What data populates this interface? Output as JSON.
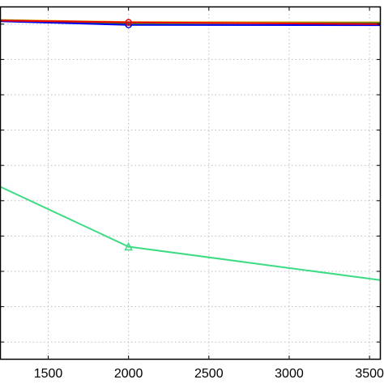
{
  "chart_data": {
    "type": "line",
    "title": "",
    "xlabel": "",
    "ylabel": "",
    "xlim": [
      1200,
      3570
    ],
    "ylim": [
      0,
      1
    ],
    "grid": true,
    "x_ticks": [
      1500,
      2000,
      2500,
      3000,
      3500
    ],
    "x_tick_labels": [
      "1500",
      "2000",
      "2500",
      "3000",
      "3500"
    ],
    "y_ticks": [
      0.05,
      0.15,
      0.25,
      0.35,
      0.45,
      0.55,
      0.65,
      0.75,
      0.85,
      0.95
    ],
    "series": [
      {
        "color": "#d9a400",
        "marker": "none",
        "x": [
          1200,
          2000,
          3570
        ],
        "y": [
          0.962,
          0.956,
          0.955
        ]
      },
      {
        "color": "#2a7a2a",
        "marker": "none",
        "x": [
          1200,
          2000,
          3570
        ],
        "y": [
          0.961,
          0.952,
          0.953
        ]
      },
      {
        "color": "#0000ee",
        "marker": "circle",
        "x": [
          1200,
          2000,
          3570
        ],
        "y": [
          0.958,
          0.948,
          0.947
        ]
      },
      {
        "color": "#ee0000",
        "marker": "circle",
        "x": [
          1200,
          2000,
          3570
        ],
        "y": [
          0.96,
          0.955,
          0.95
        ]
      },
      {
        "color": "#3ddc84",
        "marker": "triangle",
        "x": [
          1200,
          2000,
          3570
        ],
        "y": [
          0.49,
          0.32,
          0.225
        ]
      }
    ]
  }
}
